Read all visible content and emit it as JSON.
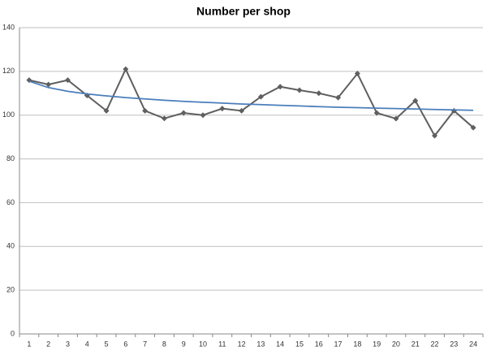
{
  "chart_data": {
    "type": "line",
    "title": "Number per shop",
    "categories": [
      "1",
      "2",
      "3",
      "4",
      "5",
      "6",
      "7",
      "8",
      "9",
      "10",
      "11",
      "12",
      "13",
      "14",
      "15",
      "16",
      "17",
      "18",
      "19",
      "20",
      "21",
      "22",
      "23",
      "24"
    ],
    "series": [
      {
        "color": "#5f5f5f",
        "marker": "diamond",
        "values": [
          116,
          114,
          116,
          109,
          102,
          121,
          102,
          98.5,
          101,
          100,
          103,
          102,
          108.4,
          113,
          111.4,
          110,
          108,
          119,
          101,
          98.4,
          106.6,
          90.6,
          102,
          94.3
        ]
      },
      {
        "color": "#4a7ebb",
        "marker": "none",
        "values": [
          115.5,
          112.6,
          110.9,
          109.7,
          108.8,
          108.0,
          107.4,
          106.8,
          106.3,
          105.9,
          105.5,
          105.1,
          104.8,
          104.5,
          104.2,
          103.9,
          103.6,
          103.4,
          103.2,
          103.0,
          102.8,
          102.6,
          102.4,
          102.2
        ]
      }
    ],
    "ylim": [
      0,
      140
    ],
    "yticks": [
      0,
      20,
      40,
      60,
      80,
      100,
      120,
      140
    ],
    "grid": true
  }
}
